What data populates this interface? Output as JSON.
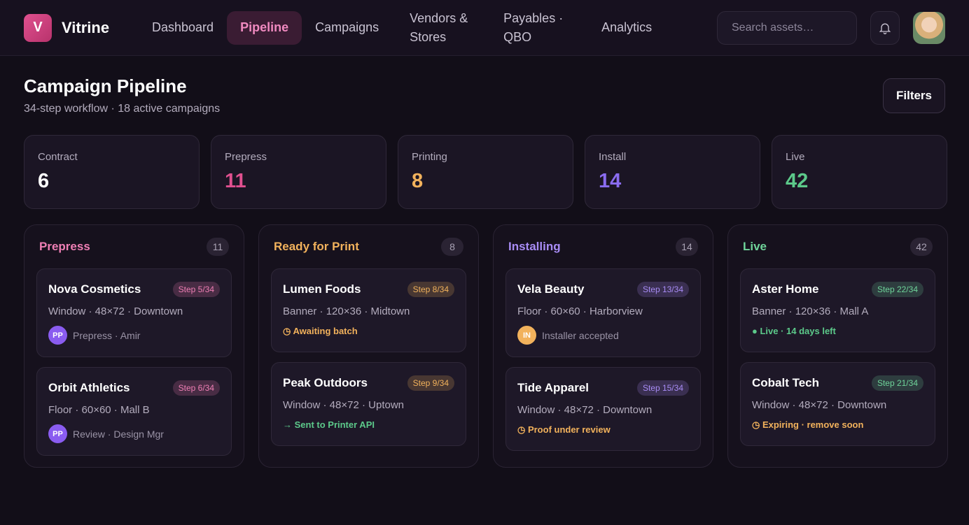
{
  "nav": {
    "logo": "V",
    "brand": "Vitrine",
    "items": [
      "Dashboard",
      "Pipeline",
      "Campaigns",
      "Vendors & Stores",
      "Payables · QBO",
      "Analytics"
    ],
    "search_placeholder": "Search assets…"
  },
  "header": {
    "title": "Campaign Pipeline",
    "subtitle": "34-step workflow · 18 active campaigns",
    "filters": "Filters"
  },
  "stats": [
    {
      "label": "Contract",
      "value": 6,
      "color": "#ffffff"
    },
    {
      "label": "Prepress",
      "value": 11,
      "color": "#e0508f"
    },
    {
      "label": "Printing",
      "value": 8,
      "color": "#f2b25c"
    },
    {
      "label": "Install",
      "value": 14,
      "color": "#8a6cf0"
    },
    {
      "label": "Live",
      "value": 42,
      "color": "#5cc98a"
    }
  ],
  "columns": [
    {
      "title": "Prepress",
      "count": 11,
      "color": "#ef7fb5",
      "cards": [
        {
          "name": "Nova Cosmetics",
          "step": "Step 5/34",
          "meta": "Window · 48×72 · Downtown",
          "avatar": "PP",
          "avatar_color": "#8a5cf0",
          "status": "Prepress · Amir",
          "status_color": "#9a93a6"
        },
        {
          "name": "Orbit Athletics",
          "step": "Step 6/34",
          "meta": "Floor · 60×60 · Mall B",
          "avatar": "PP",
          "avatar_color": "#8a5cf0",
          "status": "Review · Design Mgr",
          "status_color": "#9a93a6"
        }
      ]
    },
    {
      "title": "Ready for Print",
      "count": 8,
      "color": "#f2b25c",
      "cards": [
        {
          "name": "Lumen Foods",
          "step": "Step 8/34",
          "meta": "Banner · 120×36 · Midtown",
          "status": "◷ Awaiting batch",
          "status_color": "#f2b25c"
        },
        {
          "name": "Peak Outdoors",
          "step": "Step 9/34",
          "meta": "Window · 48×72 · Uptown",
          "status": "→ Sent to Printer API",
          "status_color": "#5cc98a"
        }
      ]
    },
    {
      "title": "Installing",
      "count": 14,
      "color": "#a88cf5",
      "cards": [
        {
          "name": "Vela Beauty",
          "step": "Step 13/34",
          "meta": "Floor · 60×60 · Harborview",
          "avatar": "IN",
          "avatar_color": "#f2b25c",
          "status": "Installer accepted",
          "status_color": "#9a93a6"
        },
        {
          "name": "Tide Apparel",
          "step": "Step 15/34",
          "meta": "Window · 48×72 · Downtown",
          "status": "◷ Proof under review",
          "status_color": "#f2b25c"
        }
      ]
    },
    {
      "title": "Live",
      "count": 42,
      "color": "#6fd49a",
      "cards": [
        {
          "name": "Aster Home",
          "step": "Step 22/34",
          "meta": "Banner · 120×36 · Mall A",
          "status": "● Live · 14 days left",
          "status_color": "#5cc98a"
        },
        {
          "name": "Cobalt Tech",
          "step": "Step 21/34",
          "meta": "Window · 48×72 · Downtown",
          "status": "◷ Expiring · remove soon",
          "status_color": "#f2b25c"
        }
      ]
    }
  ]
}
